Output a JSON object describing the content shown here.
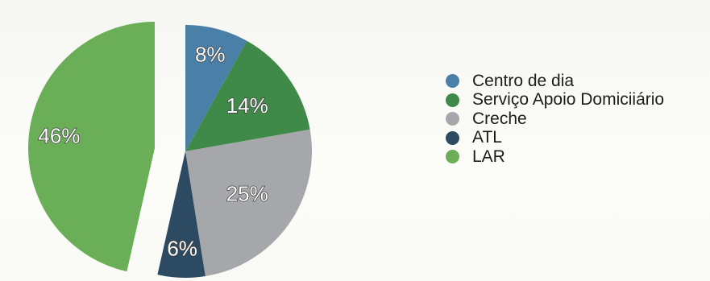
{
  "chart_data": {
    "type": "pie",
    "title": "",
    "slices": [
      {
        "name": "Centro de dia",
        "label": "8%",
        "value": 8,
        "color": "#4a7fa8"
      },
      {
        "name": "Serviço Apoio Domiciiário",
        "label": "14%",
        "value": 14,
        "color": "#3f8a48"
      },
      {
        "name": "Creche",
        "label": "25%",
        "value": 25,
        "color": "#a6a7ab"
      },
      {
        "name": "ATL",
        "label": "6%",
        "value": 6,
        "color": "#2d4a63"
      },
      {
        "name": "LAR",
        "label": "46%",
        "value": 46,
        "color": "#6aae57"
      }
    ],
    "exploded_slice": "LAR",
    "legend_position": "right"
  }
}
